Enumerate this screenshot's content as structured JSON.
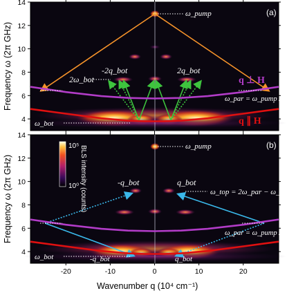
{
  "chart_data": [
    {
      "panel": "(a)",
      "type": "heatmap",
      "xlabel": "",
      "ylabel": "Frequency ω (2π GHz)",
      "xlim": [
        -28,
        28
      ],
      "ylim": [
        3,
        14
      ],
      "yticks": [
        "4",
        "6",
        "8",
        "10",
        "12",
        "14"
      ],
      "curves": [
        {
          "name": "q ∥ H",
          "color": "#e01010",
          "x": [
            -28,
            -20,
            -12,
            -6,
            -2,
            2,
            6,
            12,
            20,
            28
          ],
          "y": [
            4.85,
            4.45,
            4.05,
            3.85,
            3.8,
            3.8,
            3.85,
            4.05,
            4.45,
            4.85
          ]
        },
        {
          "name": "q ⊥ H",
          "color": "#b23cc8",
          "x": [
            -28,
            -20,
            -12,
            -6,
            0,
            6,
            12,
            20,
            28
          ],
          "y": [
            6.75,
            6.3,
            5.95,
            5.8,
            5.75,
            5.8,
            5.95,
            6.3,
            6.75
          ]
        }
      ],
      "labels": {
        "pump": "ω_pump",
        "two_bot": "2ω_bot",
        "minus_two_q": "-2q_bot",
        "plus_two_q": "2q_bot",
        "q_perp": "q ⊥ H",
        "q_par": "q ∥ H",
        "par_eq": "ω_par = ω_pump / 2",
        "bot": "ω_bot"
      }
    },
    {
      "panel": "(b)",
      "type": "heatmap",
      "xlabel": "Wavenumber q (10⁴ cm⁻¹)",
      "ylabel": "Frequency ω (2π GHz)",
      "xlim": [
        -28,
        28
      ],
      "ylim": [
        3,
        14
      ],
      "xticks": [
        "-20",
        "-10",
        "0",
        "10",
        "20"
      ],
      "yticks": [
        "4",
        "6",
        "8",
        "10",
        "12",
        "14"
      ],
      "colorbar": {
        "title": "BLS intensity (counts)",
        "max": "10⁵",
        "min": "10⁰",
        "scale": "log"
      },
      "labels": {
        "pump": "ω_pump",
        "minus_q_top": "-q_bot",
        "q_top": "q_bot",
        "top_eq": "ω_top = 2ω_par − ω_bot",
        "par_eq": "ω_par = ω_pump / 2",
        "bot": "ω_bot",
        "minus_q_bottom": "-q_bot",
        "q_bottom": "q_bot"
      }
    }
  ],
  "colors": {
    "orange": "#f5922a",
    "green": "#3ec43e",
    "cyan": "#3ab8ea",
    "red": "#e01010",
    "purple": "#b23cc8"
  }
}
